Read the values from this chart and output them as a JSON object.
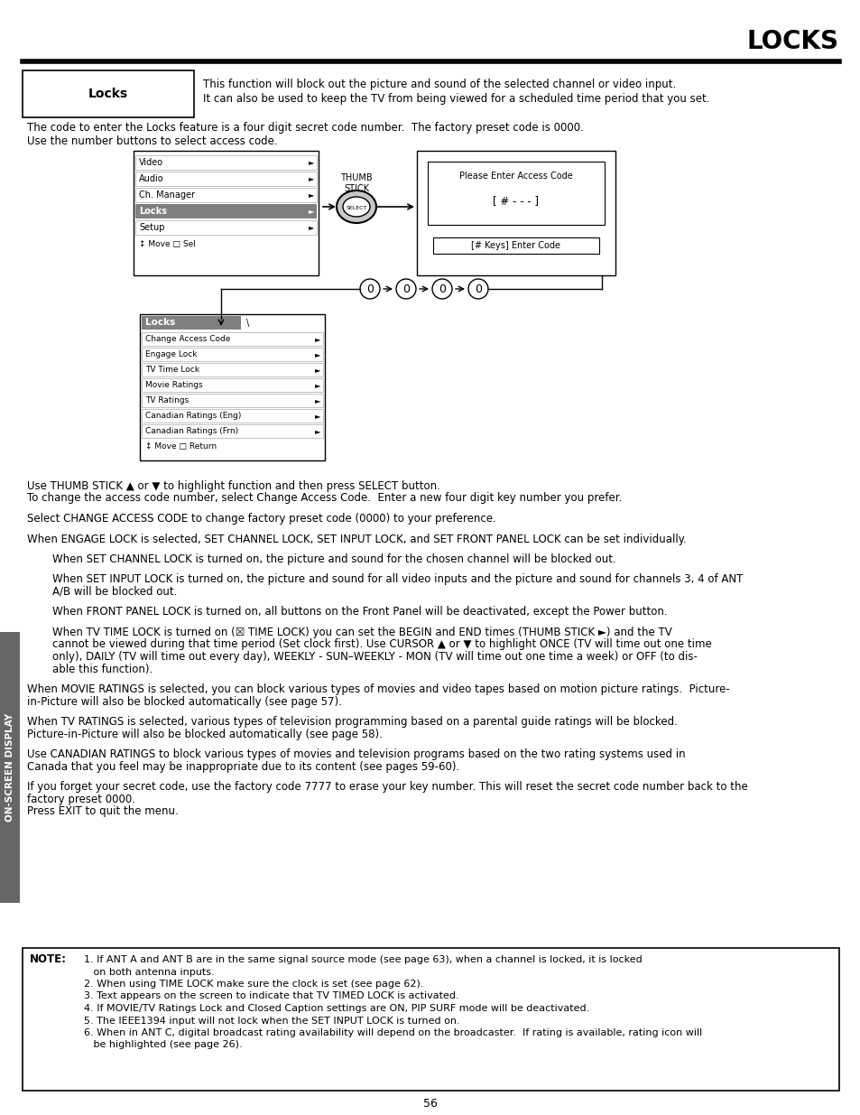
{
  "title": "LOCKS",
  "bg_color": "#ffffff",
  "page_number": "56",
  "sidebar_text": "ON-SCREEN DISPLAY",
  "intro_box_label": "Locks",
  "intro_box_text1": "This function will block out the picture and sound of the selected channel or video input.",
  "intro_box_text2": "It can also be used to keep the TV from being viewed for a scheduled time period that you set.",
  "para1": "The code to enter the Locks feature is a four digit secret code number.  The factory preset code is 0000.",
  "para2": "Use the number buttons to select access code.",
  "menu1_items": [
    "Video",
    "Audio",
    "Ch. Manager",
    "Locks",
    "Setup",
    "↕ Move □ Sel"
  ],
  "menu1_highlighted": 3,
  "thumb_stick_label": "THUMB\nSTICK",
  "access_code_title": "Please Enter Access Code",
  "access_code_display": "[ # - - - ]",
  "access_code_button": "[# Keys] Enter Code",
  "zeros": [
    "0",
    "0",
    "0",
    "0"
  ],
  "menu2_title": "Locks",
  "menu2_items": [
    "Change Access Code",
    "Engage Lock",
    "TV Time Lock",
    "Movie Ratings",
    "TV Ratings",
    "Canadian Ratings (Eng)",
    "Canadian Ratings (Frn)",
    "↕ Move □ Return"
  ],
  "body_para1_l1": "Use THUMB STICK ▲ or ▼ to highlight function and then press SELECT button.",
  "body_para1_l2": "To change the access code number, select Change Access Code.  Enter a new four digit key number you prefer.",
  "body_para2": "Select CHANGE ACCESS CODE to change factory preset code (0000) to your preference.",
  "body_para3": "When ENGAGE LOCK is selected, SET CHANNEL LOCK, SET INPUT LOCK, and SET FRONT PANEL LOCK can be set individually.",
  "body_para4": "When SET CHANNEL LOCK is turned on, the picture and sound for the chosen channel will be blocked out.",
  "body_para5_l1": "When SET INPUT LOCK is turned on, the picture and sound for all video inputs and the picture and sound for channels 3, 4 of ANT",
  "body_para5_l2": "A/B will be blocked out.",
  "body_para6": "When FRONT PANEL LOCK is turned on, all buttons on the Front Panel will be deactivated, except the Power button.",
  "body_para7_l1": "When TV TIME LOCK is turned on (☒ TIME LOCK) you can set the BEGIN and END times (THUMB STICK ►) and the TV",
  "body_para7_l2": "cannot be viewed during that time period (Set clock first). Use CURSOR ▲ or ▼ to highlight ONCE (TV will time out one time",
  "body_para7_l3": "only), DAILY (TV will time out every day), WEEKLY - SUN–WEEKLY - MON (TV will time out one time a week) or OFF (to dis-",
  "body_para7_l4": "able this function).",
  "body_para8_l1": "When MOVIE RATINGS is selected, you can block various types of movies and video tapes based on motion picture ratings.  Picture-",
  "body_para8_l2": "in-Picture will also be blocked automatically (see page 57).",
  "body_para9_l1": "When TV RATINGS is selected, various types of television programming based on a parental guide ratings will be blocked.",
  "body_para9_l2": "Picture-in-Picture will also be blocked automatically (see page 58).",
  "body_para10_l1": "Use CANADIAN RATINGS to block various types of movies and television programs based on the two rating systems used in",
  "body_para10_l2": "Canada that you feel may be inappropriate due to its content (see pages 59-60).",
  "body_para11_l1": "If you forget your secret code, use the factory code 7777 to erase your key number. This will reset the secret code number back to the",
  "body_para11_l2": "factory preset 0000.",
  "body_para11_l3": "Press EXIT to quit the menu.",
  "note_label": "NOTE:",
  "note_items": [
    "1. If ANT A and ANT B are in the same signal source mode (see page 63), when a channel is locked, it is locked",
    "   on both antenna inputs.",
    "2. When using TIME LOCK make sure the clock is set (see page 62).",
    "3. Text appears on the screen to indicate that TV TIMED LOCK is activated.",
    "4. If MOVIE/TV Ratings Lock and Closed Caption settings are ON, PIP SURF mode will be deactivated.",
    "5. The IEEE1394 input will not lock when the SET INPUT LOCK is turned on.",
    "6. When in ANT C, digital broadcast rating availability will depend on the broadcaster.  If rating is available, rating icon will",
    "   be highlighted (see page 26)."
  ]
}
